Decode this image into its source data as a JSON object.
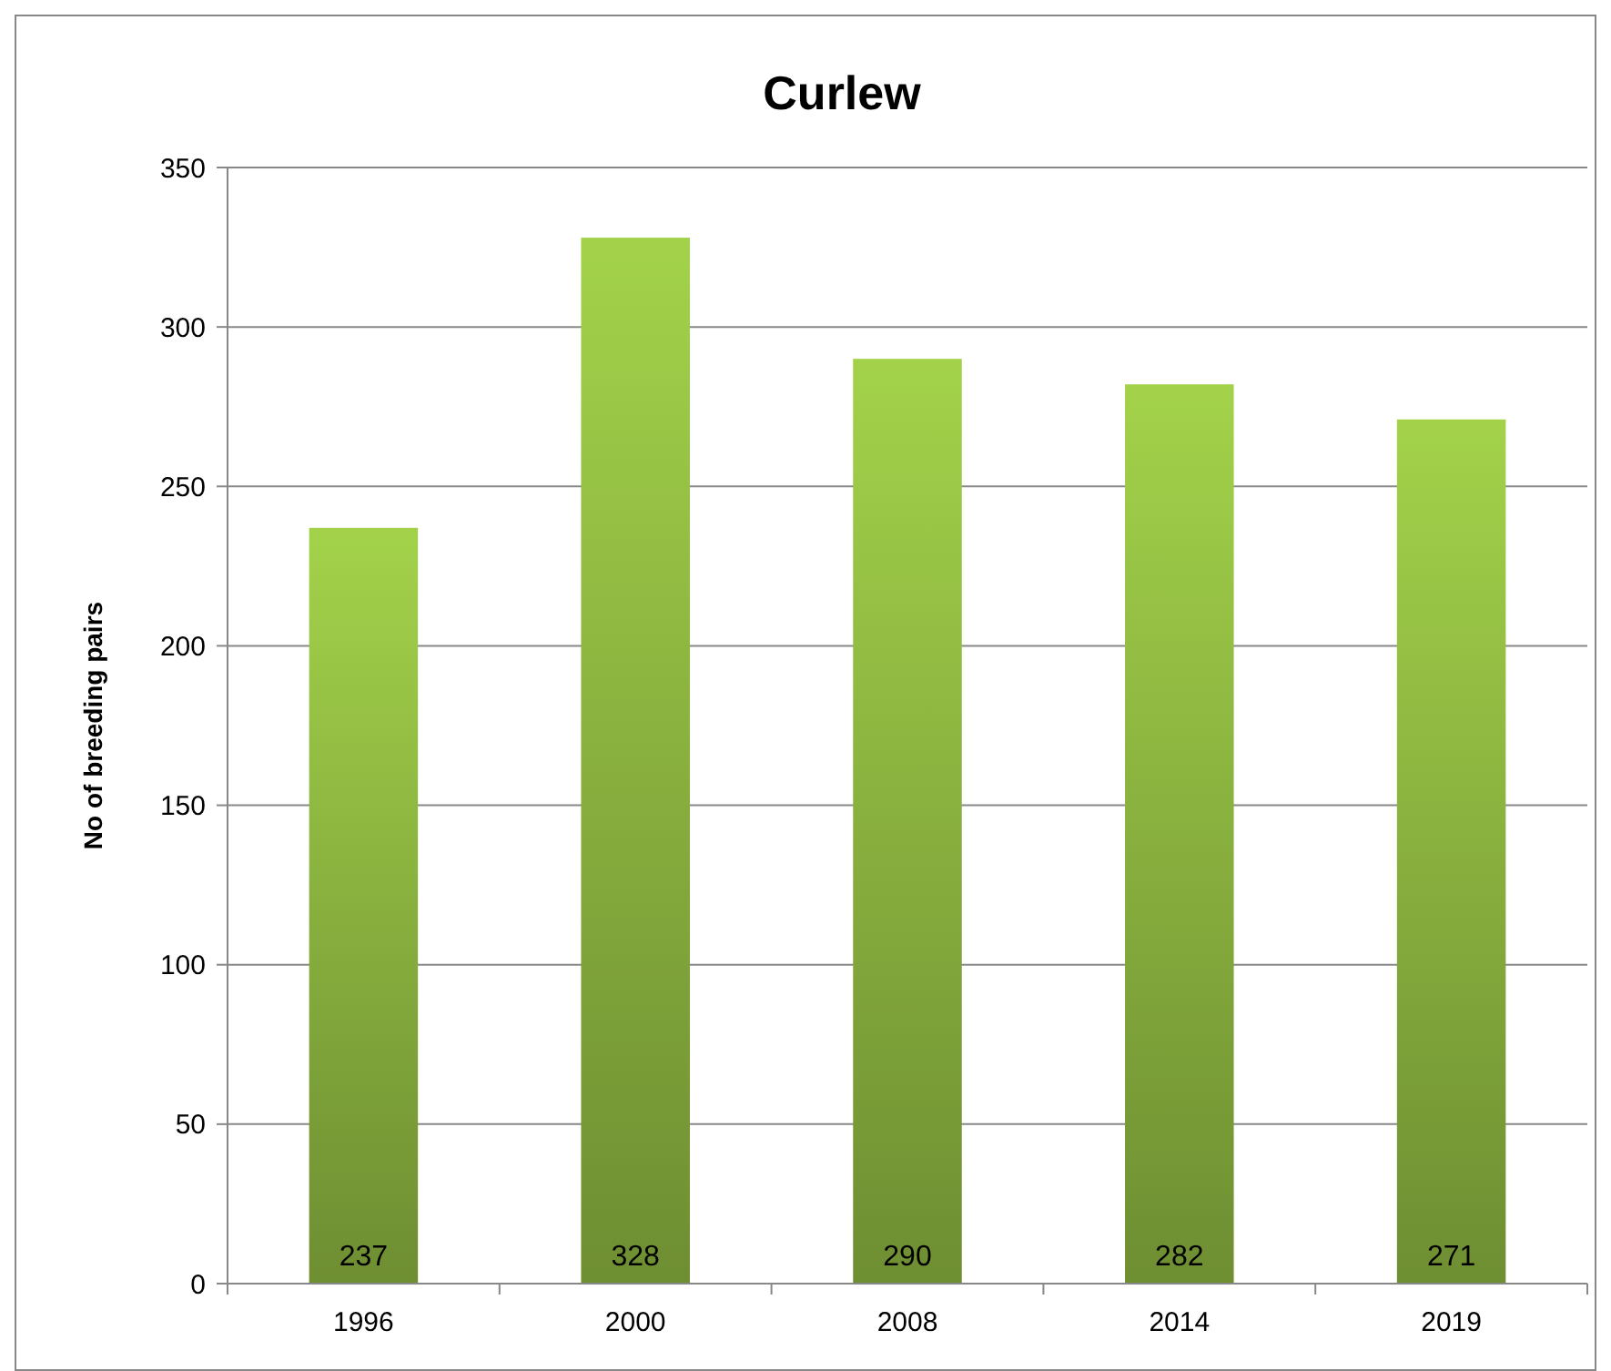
{
  "chart_data": {
    "type": "bar",
    "title": "Curlew",
    "ylabel": "No of breeding pairs",
    "categories": [
      "1996",
      "2000",
      "2008",
      "2014",
      "2019"
    ],
    "values": [
      237,
      328,
      290,
      282,
      271
    ],
    "color": "#8db640",
    "ylim": [
      0,
      350
    ],
    "yticks": [
      0,
      50,
      100,
      150,
      200,
      250,
      300,
      350
    ],
    "grid": "y",
    "data_labels": true
  }
}
